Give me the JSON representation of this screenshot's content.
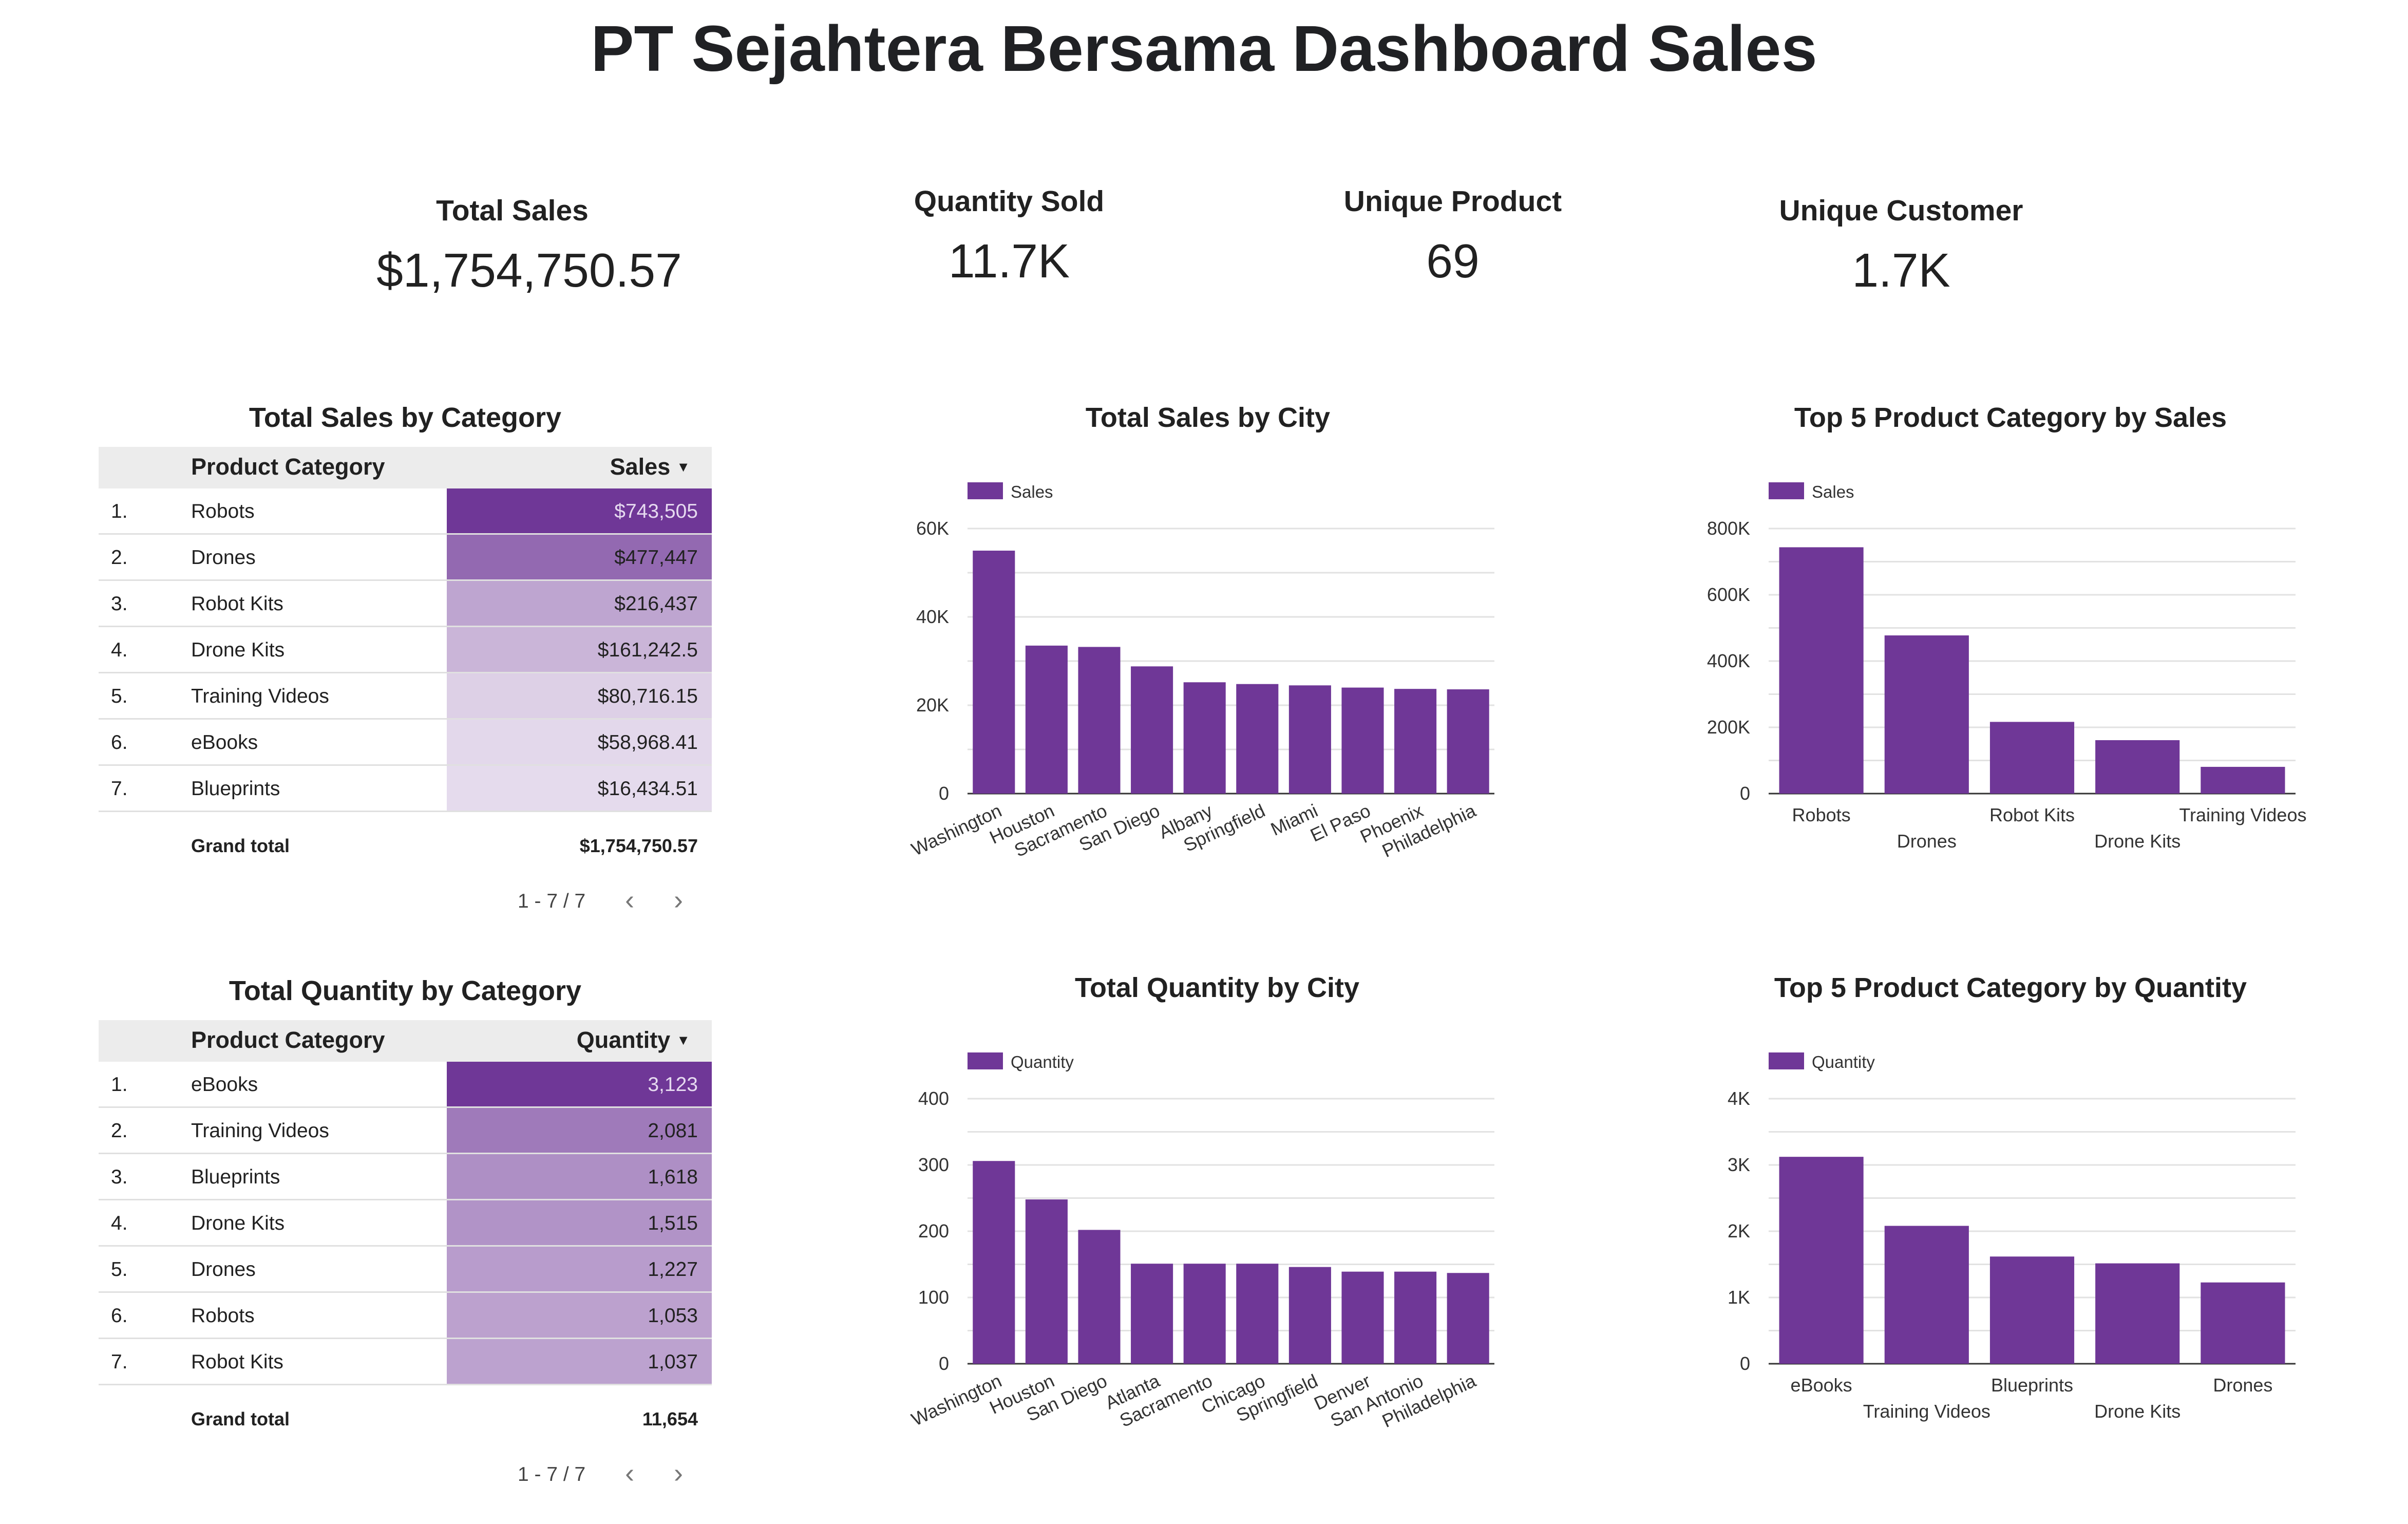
{
  "title": "PT Sejahtera Bersama Dashboard Sales",
  "accent_color": "#6f3797",
  "kpis": {
    "total_sales": {
      "label": "Total Sales",
      "value": "$1,754,750.57"
    },
    "quantity_sold": {
      "label": "Quantity Sold",
      "value": "11.7K"
    },
    "unique_product": {
      "label": "Unique Product",
      "value": "69"
    },
    "unique_customer": {
      "label": "Unique Customer",
      "value": "1.7K"
    }
  },
  "sales_table": {
    "title": "Total Sales by Category",
    "col_category": "Product Category",
    "col_value": "Sales",
    "rows": [
      {
        "num": "1.",
        "category": "Robots",
        "value": "$743,505",
        "raw": 743505
      },
      {
        "num": "2.",
        "category": "Drones",
        "value": "$477,447",
        "raw": 477447
      },
      {
        "num": "3.",
        "category": "Robot Kits",
        "value": "$216,437",
        "raw": 216437
      },
      {
        "num": "4.",
        "category": "Drone Kits",
        "value": "$161,242.5",
        "raw": 161242.5
      },
      {
        "num": "5.",
        "category": "Training Videos",
        "value": "$80,716.15",
        "raw": 80716.15
      },
      {
        "num": "6.",
        "category": "eBooks",
        "value": "$58,968.41",
        "raw": 58968.41
      },
      {
        "num": "7.",
        "category": "Blueprints",
        "value": "$16,434.51",
        "raw": 16434.51
      }
    ],
    "total_label": "Grand total",
    "total_value": "$1,754,750.57",
    "pagination": "1 - 7 / 7"
  },
  "quantity_table": {
    "title": "Total Quantity by Category",
    "col_category": "Product Category",
    "col_value": "Quantity",
    "rows": [
      {
        "num": "1.",
        "category": "eBooks",
        "value": "3,123",
        "raw": 3123
      },
      {
        "num": "2.",
        "category": "Training Videos",
        "value": "2,081",
        "raw": 2081
      },
      {
        "num": "3.",
        "category": "Blueprints",
        "value": "1,618",
        "raw": 1618
      },
      {
        "num": "4.",
        "category": "Drone Kits",
        "value": "1,515",
        "raw": 1515
      },
      {
        "num": "5.",
        "category": "Drones",
        "value": "1,227",
        "raw": 1227
      },
      {
        "num": "6.",
        "category": "Robots",
        "value": "1,053",
        "raw": 1053
      },
      {
        "num": "7.",
        "category": "Robot Kits",
        "value": "1,037",
        "raw": 1037
      }
    ],
    "total_label": "Grand total",
    "total_value": "11,654",
    "pagination": "1 - 7 / 7"
  },
  "chart_data": [
    {
      "id": "sales_city",
      "type": "bar",
      "title": "Total Sales by City",
      "categories": [
        "Washington",
        "Houston",
        "Sacramento",
        "San Diego",
        "Albany",
        "Springfield",
        "Miami",
        "El Paso",
        "Phoenix",
        "Philadelphia"
      ],
      "series": [
        {
          "name": "Sales",
          "values": [
            55000,
            33500,
            33200,
            28800,
            25200,
            24800,
            24500,
            24000,
            23700,
            23600
          ]
        }
      ],
      "ylim": [
        0,
        60000
      ],
      "yticks": [
        "0",
        "20K",
        "40K",
        "60K"
      ],
      "ytick_values": [
        0,
        20000,
        40000,
        60000
      ],
      "grid": true,
      "legend": "top-left",
      "xlabel_rotated": true
    },
    {
      "id": "sales_top5",
      "type": "bar",
      "title": "Top 5 Product Category by Sales",
      "categories": [
        "Robots",
        "Drones",
        "Robot Kits",
        "Drone Kits",
        "Training Videos"
      ],
      "series": [
        {
          "name": "Sales",
          "values": [
            743505,
            477447,
            216437,
            161242.5,
            80716.15
          ]
        }
      ],
      "ylim": [
        0,
        800000
      ],
      "yticks": [
        "0",
        "200K",
        "400K",
        "600K",
        "800K"
      ],
      "ytick_values": [
        0,
        200000,
        400000,
        600000,
        800000
      ],
      "grid": true,
      "legend": "top-left",
      "xlabel_rotated": false
    },
    {
      "id": "qty_city",
      "type": "bar",
      "title": "Total Quantity by City",
      "categories": [
        "Washington",
        "Houston",
        "San Diego",
        "Atlanta",
        "Sacramento",
        "Chicago",
        "Springfield",
        "Denver",
        "San Antonio",
        "Philadelphia"
      ],
      "series": [
        {
          "name": "Quantity",
          "values": [
            306,
            248,
            202,
            151,
            151,
            151,
            146,
            139,
            139,
            137
          ]
        }
      ],
      "ylim": [
        0,
        400
      ],
      "yticks": [
        "0",
        "100",
        "200",
        "300",
        "400"
      ],
      "ytick_values": [
        0,
        100,
        200,
        300,
        400
      ],
      "grid": true,
      "legend": "top-left",
      "xlabel_rotated": true
    },
    {
      "id": "qty_top5",
      "type": "bar",
      "title": "Top 5 Product Category by Quantity",
      "categories": [
        "eBooks",
        "Training Videos",
        "Blueprints",
        "Drone Kits",
        "Drones"
      ],
      "series": [
        {
          "name": "Quantity",
          "values": [
            3123,
            2081,
            1618,
            1515,
            1227
          ]
        }
      ],
      "ylim": [
        0,
        4000
      ],
      "yticks": [
        "0",
        "1K",
        "2K",
        "3K",
        "4K"
      ],
      "ytick_values": [
        0,
        1000,
        2000,
        3000,
        4000
      ],
      "grid": true,
      "legend": "top-left",
      "xlabel_rotated": false
    }
  ]
}
